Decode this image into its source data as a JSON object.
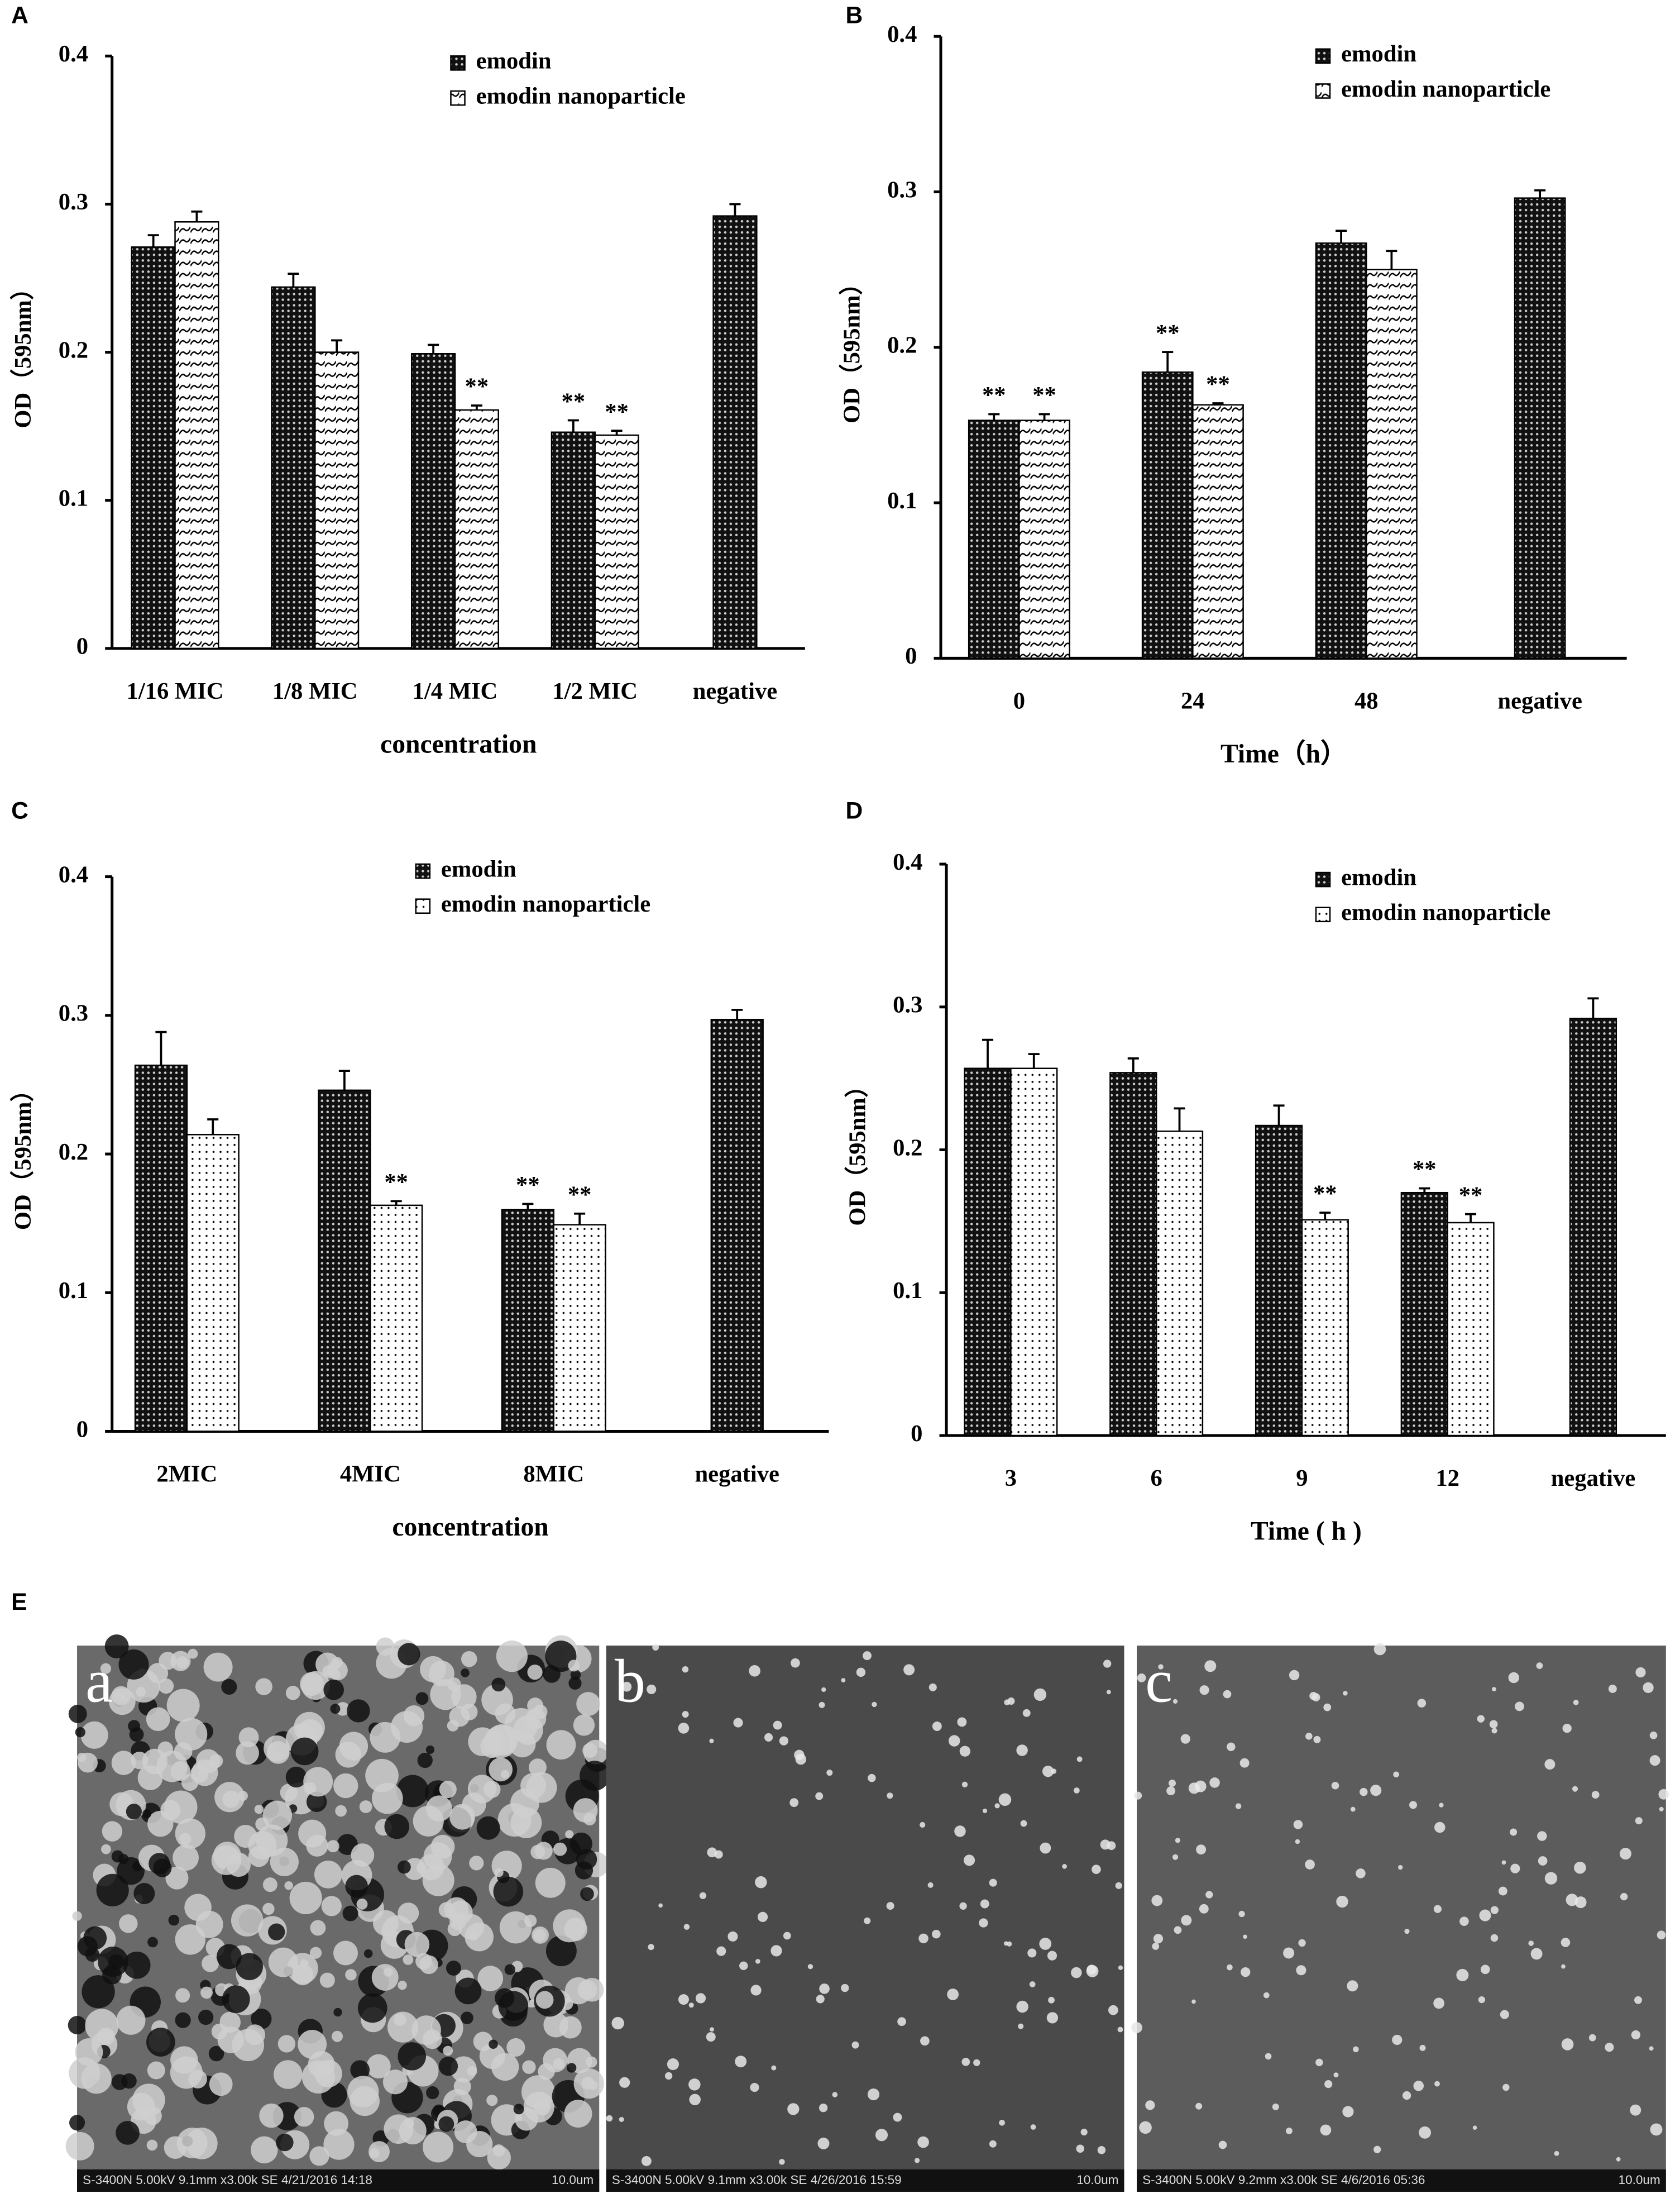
{
  "chart_data": [
    {
      "type": "bar",
      "panel": "A",
      "xlabel": "concentration",
      "ylabel": "OD（595nm）",
      "categories": [
        "1/16 MIC",
        "1/8 MIC",
        "1/4 MIC",
        "1/2 MIC",
        "negative"
      ],
      "series": [
        {
          "name": "emodin",
          "color": "#1a1a1a",
          "values": [
            0.271,
            0.244,
            0.199,
            0.146,
            0.292
          ],
          "errors": [
            0.008,
            0.009,
            0.006,
            0.008,
            0.008
          ],
          "labels": [
            null,
            null,
            null,
            "**",
            null
          ]
        },
        {
          "name": "emodin nanoparticle",
          "color": "#ffffff",
          "values": [
            0.288,
            0.2,
            0.161,
            0.144,
            null
          ],
          "errors": [
            0.007,
            0.008,
            0.003,
            0.003,
            null
          ],
          "labels": [
            null,
            null,
            "**",
            "**",
            null
          ]
        }
      ],
      "ylim": [
        0,
        0.4
      ],
      "yticks": [
        0,
        0.1,
        0.2,
        0.3,
        0.4
      ]
    },
    {
      "type": "bar",
      "panel": "B",
      "xlabel": "Time（h）",
      "ylabel": "OD（595nm）",
      "categories": [
        "0",
        "24",
        "48",
        "negative"
      ],
      "series": [
        {
          "name": "emodin",
          "color": "#1a1a1a",
          "values": [
            0.153,
            0.184,
            0.267,
            0.296
          ],
          "errors": [
            0.004,
            0.013,
            0.008,
            0.005
          ],
          "labels": [
            "**",
            "**",
            null,
            null
          ]
        },
        {
          "name": "emodin nanoparticle",
          "color": "#ffffff",
          "values": [
            0.153,
            0.163,
            0.25,
            null
          ],
          "errors": [
            0.004,
            0.001,
            0.012,
            null
          ],
          "labels": [
            "**",
            "**",
            null,
            null
          ]
        }
      ],
      "ylim": [
        0,
        0.4
      ],
      "yticks": [
        0,
        0.1,
        0.2,
        0.3,
        0.4
      ]
    },
    {
      "type": "bar",
      "panel": "C",
      "xlabel": "concentration",
      "ylabel": "OD（595nm）",
      "categories": [
        "2MIC",
        "4MIC",
        "8MIC",
        "negative"
      ],
      "series": [
        {
          "name": "emodin",
          "color": "#1a1a1a",
          "values": [
            0.264,
            0.246,
            0.16,
            0.297
          ],
          "errors": [
            0.024,
            0.014,
            0.004,
            0.007
          ],
          "labels": [
            null,
            null,
            "**",
            null
          ]
        },
        {
          "name": "emodin nanoparticle",
          "color": "#ffffff",
          "values": [
            0.214,
            0.163,
            0.149,
            null
          ],
          "errors": [
            0.011,
            0.003,
            0.008,
            null
          ],
          "labels": [
            null,
            "**",
            "**",
            null
          ]
        }
      ],
      "ylim": [
        0,
        0.4
      ],
      "yticks": [
        0,
        0.1,
        0.2,
        0.3,
        0.4
      ]
    },
    {
      "type": "bar",
      "panel": "D",
      "xlabel": "Time ( h )",
      "ylabel": "OD（595nm）",
      "categories": [
        "3",
        "6",
        "9",
        "12",
        "negative"
      ],
      "series": [
        {
          "name": "emodin",
          "color": "#1a1a1a",
          "values": [
            0.257,
            0.254,
            0.217,
            0.17,
            0.292
          ],
          "errors": [
            0.02,
            0.01,
            0.014,
            0.003,
            0.014
          ],
          "labels": [
            null,
            null,
            null,
            "**",
            null
          ]
        },
        {
          "name": "emodin nanoparticle",
          "color": "#ffffff",
          "values": [
            0.257,
            0.213,
            0.151,
            0.149,
            null
          ],
          "errors": [
            0.01,
            0.016,
            0.005,
            0.006,
            null
          ],
          "labels": [
            null,
            null,
            "**",
            "**",
            null
          ]
        }
      ],
      "ylim": [
        0,
        0.4
      ],
      "yticks": [
        0,
        0.1,
        0.2,
        0.3,
        0.4
      ]
    }
  ],
  "panel_e": {
    "panel": "E",
    "images": [
      {
        "label": "a",
        "footer": "S-3400N 5.00kV 9.1mm x3.00k SE 4/21/2016 14:18",
        "scale": "10.0um"
      },
      {
        "label": "b",
        "footer": "S-3400N 5.00kV 9.1mm x3.00k SE 4/26/2016 15:59",
        "scale": "10.0um"
      },
      {
        "label": "c",
        "footer": "S-3400N 5.00kV 9.2mm x3.00k SE 4/6/2016 05:36",
        "scale": "10.0um"
      }
    ]
  }
}
